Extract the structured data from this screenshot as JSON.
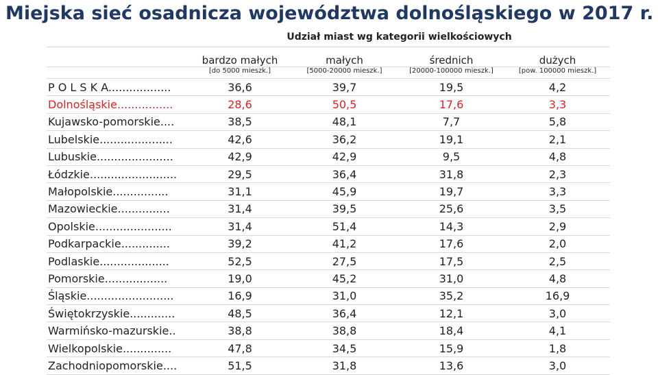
{
  "header": {
    "title": "Miejska sieć osadnicza województwa dolnośląskiego w 2017 r."
  },
  "table": {
    "group_header": "Udział miast wg kategorii wielkościowych",
    "columns": [
      {
        "name": "bardzo małych",
        "sub": "[do 5000 mieszk.]"
      },
      {
        "name": "małych",
        "sub": "[5000-20000 mieszk.]"
      },
      {
        "name": "średnich",
        "sub": "[20000-100000 mieszk.]"
      },
      {
        "name": "dużych",
        "sub": "[pow. 100000 mieszk.]"
      }
    ],
    "rows": [
      {
        "label": "P O L S K A..................",
        "values": [
          "36,6",
          "39,7",
          "19,5",
          "4,2"
        ]
      },
      {
        "label": "Dolnośląskie................",
        "values": [
          "28,6",
          "50,5",
          "17,6",
          "3,3"
        ],
        "color": "#e02020"
      },
      {
        "label": "Kujawsko-pomorskie....",
        "values": [
          "38,5",
          "48,1",
          "7,7",
          "5,8"
        ]
      },
      {
        "label": "Lubelskie.....................",
        "values": [
          "42,6",
          "36,2",
          "19,1",
          "2,1"
        ]
      },
      {
        "label": "Lubuskie......................",
        "values": [
          "42,9",
          "42,9",
          "9,5",
          "4,8"
        ]
      },
      {
        "label": "Łódzkie.........................",
        "values": [
          "29,5",
          "36,4",
          "31,8",
          "2,3"
        ]
      },
      {
        "label": "Małopolskie................",
        "values": [
          "31,1",
          "45,9",
          "19,7",
          "3,3"
        ]
      },
      {
        "label": "Mazowieckie...............",
        "values": [
          "31,4",
          "39,5",
          "25,6",
          "3,5"
        ]
      },
      {
        "label": "Opolskie......................",
        "values": [
          "31,4",
          "51,4",
          "14,3",
          "2,9"
        ]
      },
      {
        "label": "Podkarpackie..............",
        "values": [
          "39,2",
          "41,2",
          "17,6",
          "2,0"
        ]
      },
      {
        "label": "Podlaskie....................",
        "values": [
          "52,5",
          "27,5",
          "17,5",
          "2,5"
        ]
      },
      {
        "label": "Pomorskie..................",
        "values": [
          "19,0",
          "45,2",
          "31,0",
          "4,8"
        ]
      },
      {
        "label": "Śląskie.........................",
        "values": [
          "16,9",
          "31,0",
          "35,2",
          "16,9"
        ]
      },
      {
        "label": "Świętokrzyskie.............",
        "values": [
          "48,5",
          "36,4",
          "12,1",
          "3,0"
        ]
      },
      {
        "label": "Warmińsko-mazurskie..",
        "values": [
          "38,8",
          "38,8",
          "18,4",
          "4,1"
        ]
      },
      {
        "label": "Wielkopolskie..............",
        "values": [
          "47,8",
          "34,5",
          "15,9",
          "1,8"
        ]
      },
      {
        "label": "Zachodniopomorskie....",
        "values": [
          "51,5",
          "31,8",
          "13,6",
          "3,0"
        ]
      }
    ]
  }
}
